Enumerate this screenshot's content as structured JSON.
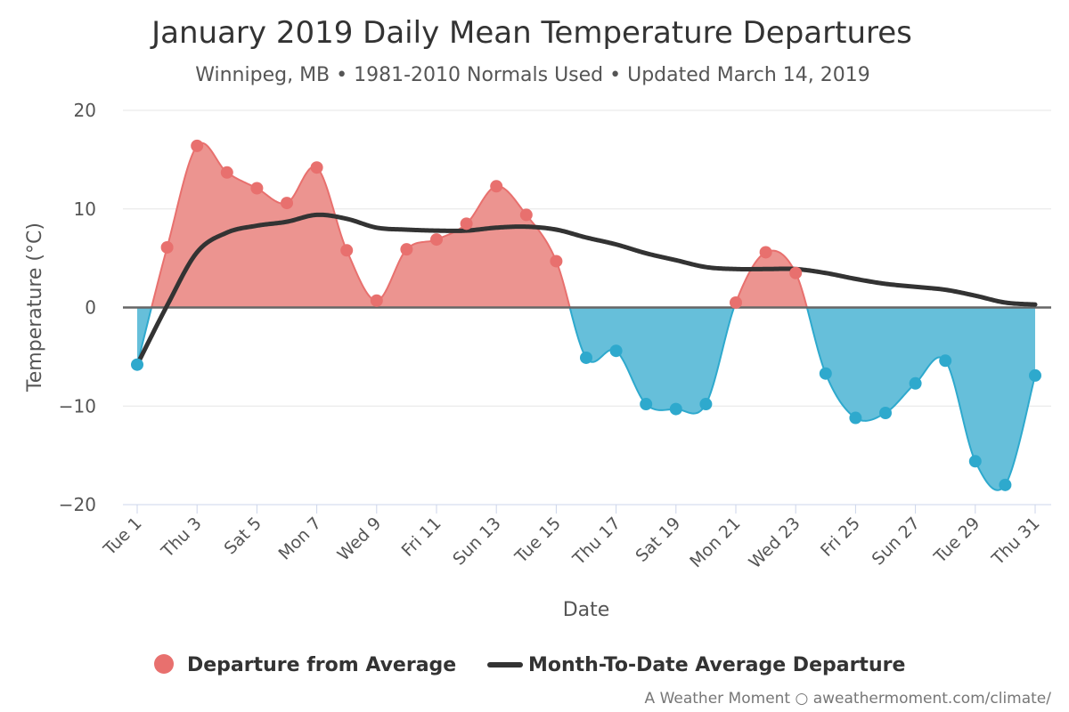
{
  "chart_data": {
    "type": "area",
    "title": "January 2019 Daily Mean Temperature Departures",
    "subtitle": "Winnipeg, MB • 1981-2010 Normals Used • Updated March 14, 2019",
    "xlabel": "Date",
    "ylabel": "Temperature (°C)",
    "ylim": [
      -20,
      20
    ],
    "yticks": [
      20,
      10,
      0,
      -10,
      -20
    ],
    "ytick_labels": [
      "20",
      "10",
      "0",
      "−10",
      "−20"
    ],
    "x": [
      1,
      2,
      3,
      4,
      5,
      6,
      7,
      8,
      9,
      10,
      11,
      12,
      13,
      14,
      15,
      16,
      17,
      18,
      19,
      20,
      21,
      22,
      23,
      24,
      25,
      26,
      27,
      28,
      29,
      30,
      31
    ],
    "x_tick_labels": [
      "Tue 1",
      "Thu 3",
      "Sat 5",
      "Mon 7",
      "Wed 9",
      "Fri 11",
      "Sun 13",
      "Tue 15",
      "Thu 17",
      "Sat 19",
      "Mon 21",
      "Wed 23",
      "Fri 25",
      "Sun 27",
      "Tue 29",
      "Thu 31"
    ],
    "x_tick_days": [
      1,
      3,
      5,
      7,
      9,
      11,
      13,
      15,
      17,
      19,
      21,
      23,
      25,
      27,
      29,
      31
    ],
    "grid": true,
    "legend_position": "bottom-center",
    "series": [
      {
        "name": "Departure from Average",
        "type": "area",
        "color_positive": "#e8706e",
        "fill_positive": "#ec9490",
        "color_negative": "#2ea9cd",
        "fill_negative": "#66bfda",
        "values": [
          -5.8,
          6.1,
          16.4,
          13.7,
          12.1,
          10.6,
          14.2,
          5.8,
          0.7,
          5.9,
          6.9,
          8.5,
          12.3,
          9.4,
          4.7,
          -5.1,
          -4.4,
          -9.8,
          -10.3,
          -9.8,
          0.5,
          5.6,
          3.5,
          -6.7,
          -11.2,
          -10.7,
          -7.7,
          -5.4,
          -15.6,
          -18.0,
          -6.9
        ]
      },
      {
        "name": "Month-To-Date Average Departure",
        "type": "line",
        "color": "#333333",
        "values": [
          -5.8,
          0.2,
          5.6,
          7.6,
          8.3,
          8.7,
          9.4,
          9.0,
          8.1,
          7.9,
          7.8,
          7.8,
          8.1,
          8.2,
          7.9,
          7.1,
          6.4,
          5.5,
          4.8,
          4.1,
          3.9,
          3.9,
          3.9,
          3.5,
          2.9,
          2.4,
          2.1,
          1.8,
          1.2,
          0.5,
          0.3
        ]
      }
    ],
    "credits": "A Weather Moment ○ aweathermoment.com/climate/"
  }
}
